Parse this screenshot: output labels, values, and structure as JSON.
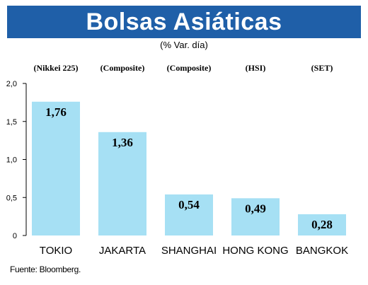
{
  "chart_data": {
    "type": "bar",
    "title": "Bolsas Asiáticas",
    "subtitle": "(% Var. día)",
    "categories": [
      "TOKIO",
      "JAKARTA",
      "SHANGHAI",
      "HONG KONG",
      "BANGKOK"
    ],
    "index_labels": [
      "(Nikkei 225)",
      "(Composite)",
      "(Composite)",
      "(HSI)",
      "(SET)"
    ],
    "values": [
      1.76,
      1.36,
      0.54,
      0.49,
      0.28
    ],
    "value_labels": [
      "1,76",
      "1,36",
      "0,54",
      "0,49",
      "0,28"
    ],
    "ylim": [
      0,
      2.0
    ],
    "yticks": [
      0,
      0.5,
      1.0,
      1.5,
      2.0
    ],
    "ytick_labels": [
      "0",
      "0,5",
      "1,0",
      "1,5",
      "2,0"
    ],
    "grid": false,
    "xlabel": "",
    "ylabel": "",
    "colors": {
      "bar": "#a6e0f4",
      "title_bg": "#1f5fa8",
      "title_text": "#ffffff"
    }
  },
  "source": "Fuente: Bloomberg."
}
